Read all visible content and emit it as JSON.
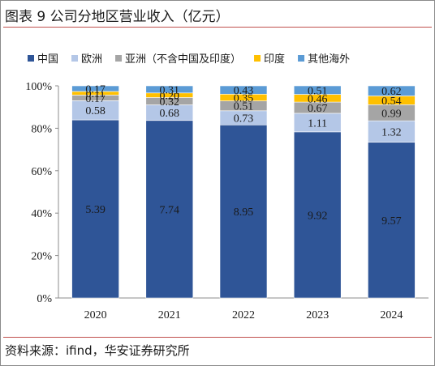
{
  "figure": {
    "title": "图表 9  公司分地区营业收入（亿元）",
    "source": "资料来源：ifind，华安证券研究所"
  },
  "chart_data": {
    "type": "bar",
    "stacked": true,
    "normalized": true,
    "categories": [
      "2020",
      "2021",
      "2022",
      "2023",
      "2024"
    ],
    "series": [
      {
        "name": "中国",
        "color": "#2f5597",
        "values": [
          5.39,
          7.74,
          8.95,
          9.92,
          9.57
        ]
      },
      {
        "name": "欧洲",
        "color": "#b4c7e7",
        "values": [
          0.58,
          0.68,
          0.73,
          1.11,
          1.32
        ]
      },
      {
        "name": "亚洲（不含中国及印度）",
        "color": "#a5a5a5",
        "values": [
          0.17,
          0.32,
          0.51,
          0.67,
          0.99
        ]
      },
      {
        "name": "印度",
        "color": "#ffc000",
        "values": [
          0.11,
          0.2,
          0.35,
          0.46,
          0.54
        ]
      },
      {
        "name": "其他海外",
        "color": "#5b9bd5",
        "values": [
          0.17,
          0.31,
          0.43,
          0.51,
          0.62
        ]
      }
    ],
    "y_ticks": [
      "0%",
      "20%",
      "40%",
      "60%",
      "80%",
      "100%"
    ],
    "ylim": [
      0,
      1
    ],
    "legend": "top",
    "grid": false
  }
}
